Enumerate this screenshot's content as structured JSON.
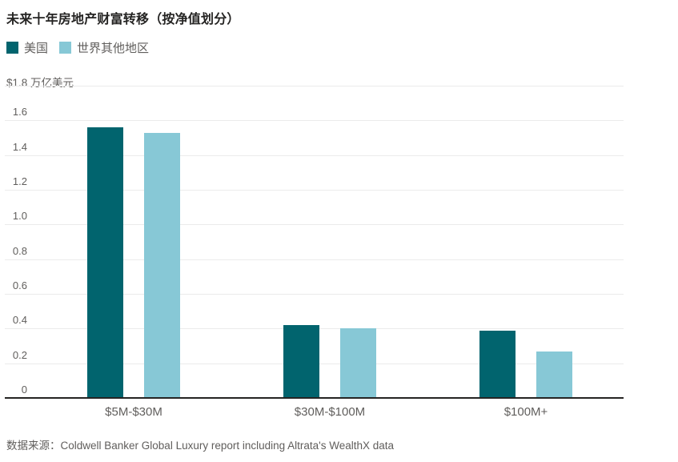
{
  "chart_data": {
    "type": "bar",
    "title": "未来十年房地产财富转移（按净值划分）",
    "y_axis_top_label": "$1.8 万亿美元",
    "categories": [
      "$5M-$30M",
      "$30M-$100M",
      "$100M+"
    ],
    "series": [
      {
        "key": "us",
        "name": "美国",
        "color": "#01646E",
        "values": [
          1.56,
          0.42,
          0.39
        ]
      },
      {
        "key": "rest-of-world",
        "name": "世界其他地区",
        "color": "#87C8D6",
        "values": [
          1.53,
          0.4,
          0.27
        ]
      }
    ],
    "ylim": [
      0,
      1.8
    ],
    "y_tick_labels": [
      "0",
      "0.2",
      "0.4",
      "0.6",
      "0.8",
      "1.0",
      "1.2",
      "1.4",
      "1.6"
    ],
    "grid": true,
    "legend_position": "top-left",
    "source": "数据来源：Coldwell Banker Global Luxury report including Altrata's WealthX data"
  }
}
